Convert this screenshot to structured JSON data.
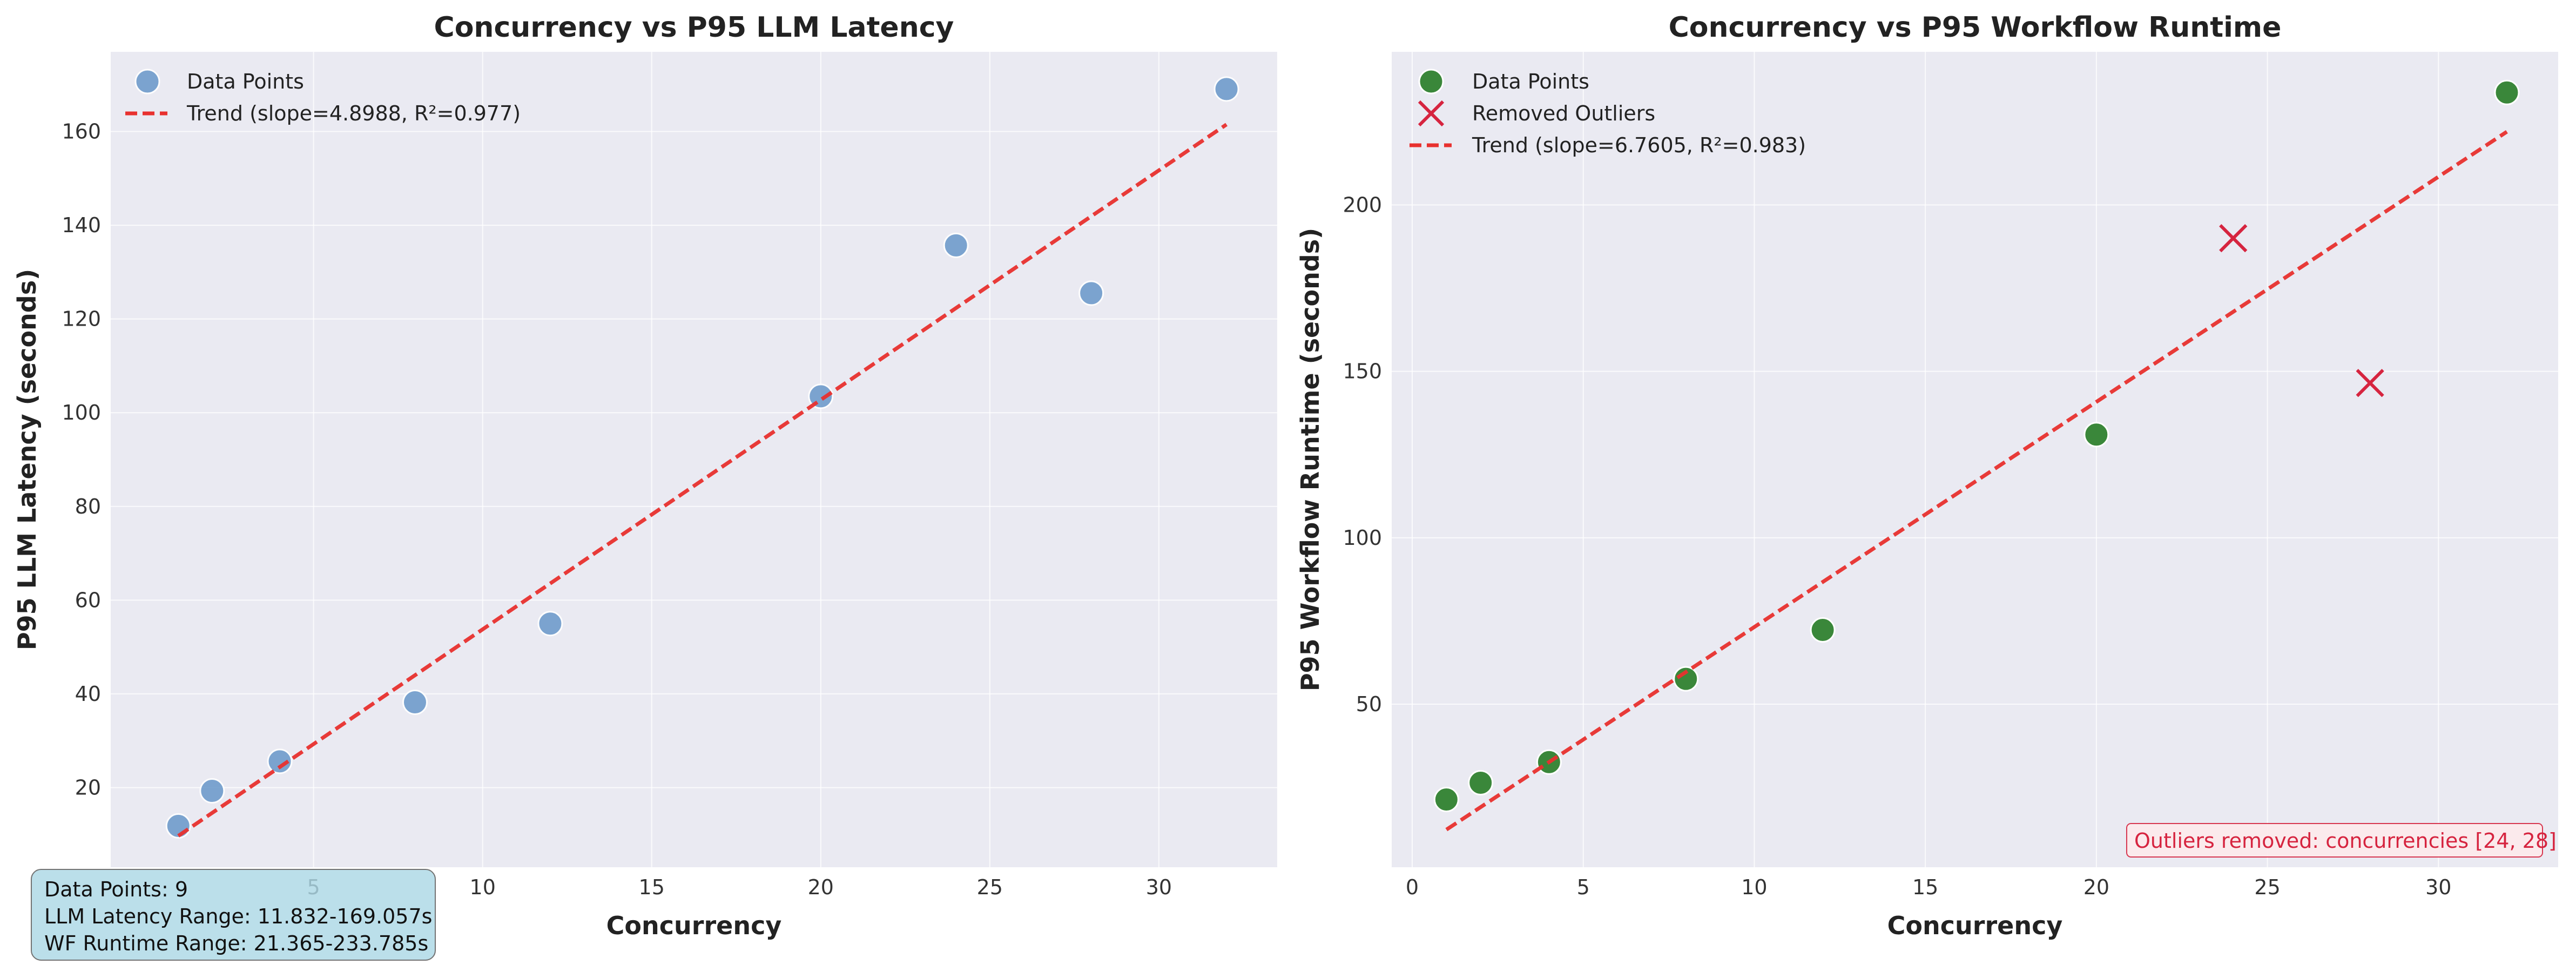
{
  "chart_data": [
    {
      "type": "scatter",
      "title": "Concurrency vs P95 LLM Latency",
      "xlabel": "Concurrency",
      "ylabel": "P95 LLM Latency (seconds)",
      "xlim": [
        -1,
        33.5
      ],
      "ylim": [
        3,
        177
      ],
      "xticks": [
        5,
        10,
        15,
        20,
        25,
        30
      ],
      "yticks": [
        20,
        40,
        60,
        80,
        100,
        120,
        140,
        160
      ],
      "grid": true,
      "legend_position": "top-left",
      "series": [
        {
          "name": "Data Points",
          "kind": "scatter",
          "color": "#6f9ccc",
          "x": [
            1,
            2,
            4,
            8,
            12,
            20,
            24,
            28,
            32
          ],
          "y": [
            11.832,
            19.3,
            25.6,
            38.2,
            55.0,
            103.5,
            135.7,
            125.5,
            169.057
          ]
        },
        {
          "name": "Trend (slope=4.8988, R²=0.977)",
          "kind": "line",
          "color": "#e8312f",
          "x": [
            1,
            32
          ],
          "y": [
            9.7,
            161.5
          ]
        }
      ]
    },
    {
      "type": "scatter",
      "title": "Concurrency vs P95 Workflow Runtime",
      "xlabel": "Concurrency",
      "ylabel": "P95 Workflow Runtime (seconds)",
      "xlim": [
        -0.6,
        33.5
      ],
      "ylim": [
        1,
        246
      ],
      "xticks": [
        0,
        5,
        10,
        15,
        20,
        25,
        30
      ],
      "yticks": [
        50,
        100,
        150,
        200
      ],
      "grid": true,
      "legend_position": "top-left",
      "series": [
        {
          "name": "Data Points",
          "kind": "scatter",
          "color": "#3a873a",
          "x": [
            1,
            2,
            4,
            8,
            12,
            20,
            32
          ],
          "y": [
            21.365,
            26.4,
            32.6,
            57.6,
            72.3,
            131.0,
            233.785
          ]
        },
        {
          "name": "Removed Outliers",
          "kind": "cross",
          "color": "#d6243f",
          "x": [
            24,
            28
          ],
          "y": [
            190.0,
            146.5
          ]
        },
        {
          "name": "Trend (slope=6.7605, R²=0.983)",
          "kind": "line",
          "color": "#e8312f",
          "x": [
            1,
            32
          ],
          "y": [
            12.3,
            222.0
          ]
        }
      ],
      "annotation": "Outliers removed: concurrencies [24, 28]"
    }
  ],
  "info_box": {
    "line1": "Data Points: 9",
    "line2": "LLM Latency Range: 11.832-169.057s",
    "line3": "WF Runtime Range: 21.365-233.785s"
  }
}
